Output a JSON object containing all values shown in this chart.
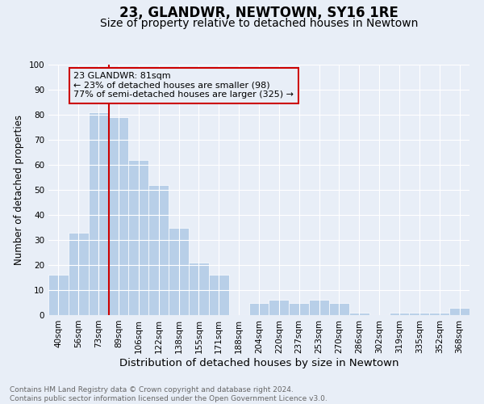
{
  "title": "23, GLANDWR, NEWTOWN, SY16 1RE",
  "subtitle": "Size of property relative to detached houses in Newtown",
  "xlabel": "Distribution of detached houses by size in Newtown",
  "ylabel": "Number of detached properties",
  "categories": [
    "40sqm",
    "56sqm",
    "73sqm",
    "89sqm",
    "106sqm",
    "122sqm",
    "138sqm",
    "155sqm",
    "171sqm",
    "188sqm",
    "204sqm",
    "220sqm",
    "237sqm",
    "253sqm",
    "270sqm",
    "286sqm",
    "302sqm",
    "319sqm",
    "335sqm",
    "352sqm",
    "368sqm"
  ],
  "values": [
    16,
    33,
    81,
    79,
    62,
    52,
    35,
    21,
    16,
    0,
    5,
    6,
    5,
    6,
    5,
    1,
    0,
    1,
    1,
    1,
    3
  ],
  "bar_color": "#b8cfe8",
  "bar_edge_color": "#ffffff",
  "background_color": "#e8eef7",
  "grid_color": "#ffffff",
  "vline_color": "#cc0000",
  "annotation_text": "23 GLANDWR: 81sqm\n← 23% of detached houses are smaller (98)\n77% of semi-detached houses are larger (325) →",
  "annotation_box_color": "#cc0000",
  "ylim": [
    0,
    100
  ],
  "yticks": [
    0,
    10,
    20,
    30,
    40,
    50,
    60,
    70,
    80,
    90,
    100
  ],
  "footer": "Contains HM Land Registry data © Crown copyright and database right 2024.\nContains public sector information licensed under the Open Government Licence v3.0.",
  "title_fontsize": 12,
  "subtitle_fontsize": 10,
  "xlabel_fontsize": 9.5,
  "ylabel_fontsize": 8.5,
  "tick_fontsize": 7.5,
  "annotation_fontsize": 8,
  "footer_fontsize": 6.5
}
